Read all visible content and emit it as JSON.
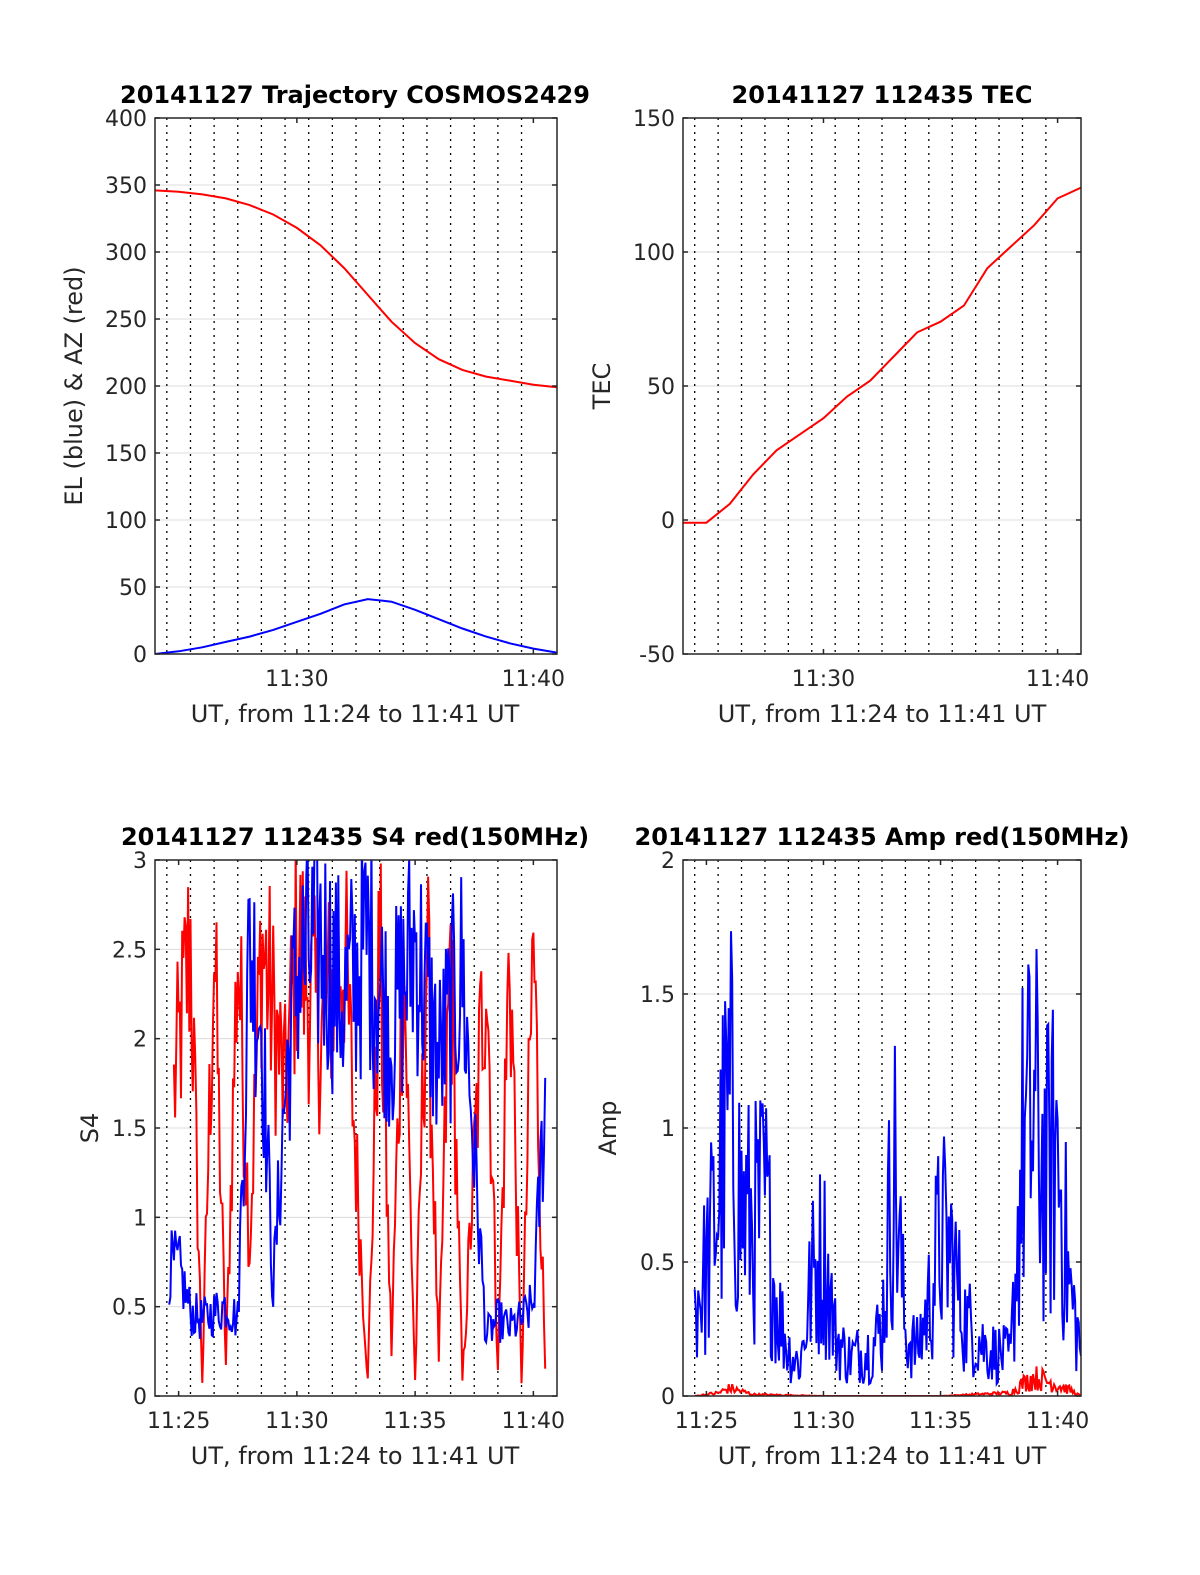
{
  "chart_data": [
    {
      "type": "line",
      "title": "20141127 Trajectory COSMOS2429",
      "xlabel": "UT, from 11:24 to 11:41 UT",
      "ylabel": "EL (blue) & AZ (red)",
      "xlim": [
        "11:24",
        "11:41"
      ],
      "ylim": [
        0,
        400
      ],
      "xticks": [
        "11:30",
        "11:40"
      ],
      "yticks": [
        "0",
        "50",
        "100",
        "150",
        "200",
        "250",
        "300",
        "350",
        "400"
      ],
      "grid": true,
      "series": [
        {
          "name": "AZ",
          "color": "#ff0000",
          "x": [
            "11:24",
            "11:25",
            "11:26",
            "11:27",
            "11:28",
            "11:29",
            "11:30",
            "11:31",
            "11:32",
            "11:33",
            "11:34",
            "11:35",
            "11:36",
            "11:37",
            "11:38",
            "11:39",
            "11:40",
            "11:41"
          ],
          "y": [
            346,
            345,
            343,
            340,
            335,
            328,
            318,
            305,
            288,
            268,
            248,
            232,
            220,
            212,
            207,
            204,
            201,
            199
          ]
        },
        {
          "name": "EL",
          "color": "#0000ff",
          "x": [
            "11:24",
            "11:25",
            "11:26",
            "11:27",
            "11:28",
            "11:29",
            "11:30",
            "11:31",
            "11:32",
            "11:33",
            "11:34",
            "11:35",
            "11:36",
            "11:37",
            "11:38",
            "11:39",
            "11:40",
            "11:41"
          ],
          "y": [
            0,
            2,
            5,
            9,
            13,
            18,
            24,
            30,
            37,
            41,
            39,
            33,
            26,
            19,
            13,
            8,
            4,
            1
          ]
        }
      ]
    },
    {
      "type": "line",
      "title": "20141127 112435 TEC",
      "xlabel": "UT, from 11:24 to 11:41 UT",
      "ylabel": "TEC",
      "xlim": [
        "11:24",
        "11:41"
      ],
      "ylim": [
        -50,
        150
      ],
      "xticks": [
        "11:30",
        "11:40"
      ],
      "yticks": [
        "-50",
        "0",
        "50",
        "100",
        "150"
      ],
      "grid": true,
      "series": [
        {
          "name": "TEC",
          "color": "#ff0000",
          "x": [
            "11:24",
            "11:25",
            "11:26",
            "11:27",
            "11:28",
            "11:29",
            "11:30",
            "11:31",
            "11:32",
            "11:33",
            "11:34",
            "11:35",
            "11:36",
            "11:37",
            "11:38",
            "11:39",
            "11:40",
            "11:41"
          ],
          "y": [
            -1,
            -1,
            6,
            17,
            26,
            32,
            38,
            46,
            52,
            61,
            70,
            74,
            80,
            94,
            102,
            110,
            120,
            124
          ]
        }
      ]
    },
    {
      "type": "line",
      "title": "20141127 112435 S4 red(150MHz)",
      "xlabel": "UT, from 11:24 to 11:41 UT",
      "ylabel": "S4",
      "xlim": [
        "11:24",
        "11:41"
      ],
      "ylim": [
        0,
        3
      ],
      "xticks": [
        "11:25",
        "11:30",
        "11:35",
        "11:40"
      ],
      "yticks": [
        "0",
        "0.5",
        "1",
        "1.5",
        "2",
        "2.5",
        "3"
      ],
      "grid": true,
      "series": [
        {
          "name": "red",
          "color": "#ff0000",
          "x": [
            "11:24.8",
            "11:25.5",
            "11:26",
            "11:26.5",
            "11:27",
            "11:27.5",
            "11:28",
            "11:28.5",
            "11:29",
            "11:29.5",
            "11:30",
            "11:31",
            "11:32",
            "11:33",
            "11:33.5",
            "11:34",
            "11:34.5",
            "11:35",
            "11:35.5",
            "11:36",
            "11:36.5",
            "11:37",
            "11:38",
            "11:38.5",
            "11:39",
            "11:39.5",
            "11:40",
            "11:40.5"
          ],
          "y": [
            2.0,
            3.0,
            0.1,
            3.0,
            0.2,
            3.0,
            1.0,
            3.0,
            2.5,
            2.0,
            3.0,
            2.4,
            3.0,
            0.1,
            3.0,
            0.3,
            3.0,
            0.1,
            3.0,
            0.2,
            3.0,
            0.1,
            3.0,
            0.2,
            3.0,
            0.1,
            3.0,
            0.2
          ]
        },
        {
          "name": "blue",
          "color": "#0000ff",
          "x": [
            "11:24.6",
            "11:25",
            "11:25.5",
            "11:26",
            "11:26.5",
            "11:27",
            "11:27.5",
            "11:28",
            "11:28.5",
            "11:29",
            "11:29.5",
            "11:30",
            "11:31",
            "11:32",
            "11:33",
            "11:34",
            "11:35",
            "11:36",
            "11:37",
            "11:38",
            "11:38.5",
            "11:39",
            "11:39.5",
            "11:40",
            "11:40.5"
          ],
          "y": [
            0.85,
            0.85,
            0.55,
            0.5,
            0.55,
            0.6,
            0.5,
            3.0,
            2.5,
            0.7,
            2.0,
            2.8,
            3.0,
            2.6,
            3.0,
            2.4,
            3.0,
            2.2,
            2.8,
            0.4,
            0.5,
            0.45,
            0.5,
            0.6,
            2.0
          ]
        }
      ]
    },
    {
      "type": "line",
      "title": "20141127 112435 Amp red(150MHz)",
      "xlabel": "UT, from 11:24 to 11:41 UT",
      "ylabel": "Amp",
      "xlim": [
        "11:24",
        "11:41"
      ],
      "ylim": [
        0,
        2
      ],
      "xticks": [
        "11:25",
        "11:30",
        "11:35",
        "11:40"
      ],
      "yticks": [
        "0",
        "0.5",
        "1",
        "1.5",
        "2"
      ],
      "grid": true,
      "series": [
        {
          "name": "blue",
          "color": "#0000ff",
          "x": [
            "11:24.5",
            "11:25",
            "11:25.5",
            "11:26",
            "11:26.5",
            "11:27",
            "11:27.5",
            "11:28",
            "11:28.5",
            "11:29",
            "11:29.5",
            "11:30",
            "11:30.5",
            "11:31",
            "11:32",
            "11:32.5",
            "11:33",
            "11:33.5",
            "11:34",
            "11:34.5",
            "11:35",
            "11:35.5",
            "11:36",
            "11:37",
            "11:38",
            "11:38.5",
            "11:39",
            "11:39.5",
            "11:40",
            "11:40.5",
            "11:41"
          ],
          "y": [
            0.6,
            0.8,
            1.3,
            1.85,
            1.2,
            1.1,
            1.25,
            0.6,
            0.3,
            0.2,
            0.75,
            0.95,
            0.4,
            0.25,
            0.3,
            0.45,
            1.55,
            0.4,
            0.3,
            0.6,
            1.05,
            0.9,
            0.5,
            0.3,
            0.25,
            1.6,
            1.8,
            1.4,
            1.6,
            0.7,
            0.3
          ]
        },
        {
          "name": "red",
          "color": "#ff0000",
          "x": [
            "11:24.5",
            "11:25.5",
            "11:26",
            "11:26.5",
            "11:27",
            "11:30",
            "11:35",
            "11:38",
            "11:38.5",
            "11:39",
            "11:39.5",
            "11:40",
            "11:40.5",
            "11:41"
          ],
          "y": [
            0.0,
            0.02,
            0.05,
            0.03,
            0.01,
            0.0,
            0.0,
            0.02,
            0.08,
            0.12,
            0.1,
            0.07,
            0.04,
            0.0
          ]
        }
      ]
    }
  ]
}
